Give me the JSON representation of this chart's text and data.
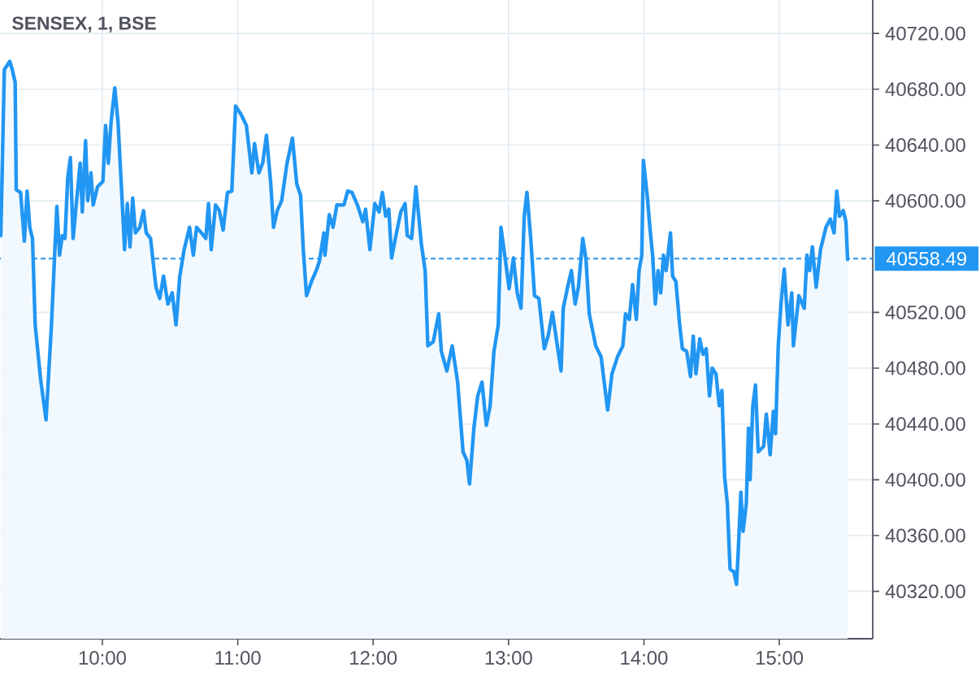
{
  "chart_data": {
    "type": "area",
    "title": "SENSEX, 1, BSE",
    "color": "#2196f3",
    "x": [
      9.25,
      9.276,
      9.316,
      9.332,
      9.356,
      9.364,
      9.396,
      9.424,
      9.444,
      9.464,
      9.484,
      9.504,
      9.544,
      9.584,
      9.624,
      9.664,
      9.684,
      9.704,
      9.724,
      9.744,
      9.764,
      9.784,
      9.804,
      9.836,
      9.852,
      9.876,
      9.892,
      9.916,
      9.932,
      9.964,
      10.004,
      10.024,
      10.044,
      10.064,
      10.092,
      10.116,
      10.144,
      10.164,
      10.184,
      10.204,
      10.224,
      10.244,
      10.276,
      10.304,
      10.324,
      10.356,
      10.396,
      10.424,
      10.452,
      10.484,
      10.516,
      10.544,
      10.572,
      10.604,
      10.644,
      10.672,
      10.696,
      10.732,
      10.764,
      10.784,
      10.804,
      10.836,
      10.864,
      10.892,
      10.924,
      10.956,
      10.984,
      11.024,
      11.064,
      11.104,
      11.124,
      11.156,
      11.184,
      11.212,
      11.244,
      11.264,
      11.292,
      11.324,
      11.364,
      11.404,
      11.436,
      11.464,
      11.484,
      11.508,
      11.544,
      11.584,
      11.604,
      11.636,
      11.644,
      11.676,
      11.704,
      11.732,
      11.784,
      11.812,
      11.844,
      11.884,
      11.924,
      11.944,
      11.976,
      12.012,
      12.044,
      12.068,
      12.092,
      12.116,
      12.136,
      12.164,
      12.204,
      12.236,
      12.252,
      12.284,
      12.316,
      12.356,
      12.384,
      12.404,
      12.444,
      12.484,
      12.504,
      12.544,
      12.584,
      12.624,
      12.664,
      12.692,
      12.712,
      12.744,
      12.772,
      12.804,
      12.836,
      12.864,
      12.892,
      12.924,
      12.944,
      12.976,
      13.004,
      13.036,
      13.064,
      13.092,
      13.116,
      13.136,
      13.164,
      13.192,
      13.224,
      13.264,
      13.292,
      13.324,
      13.388,
      13.404,
      13.436,
      13.464,
      13.492,
      13.516,
      13.548,
      13.572,
      13.596,
      13.644,
      13.684,
      13.704,
      13.732,
      13.764,
      13.804,
      13.844,
      13.864,
      13.892,
      13.916,
      13.944,
      13.964,
      13.984,
      13.996,
      14.024,
      14.044,
      14.064,
      14.084,
      14.104,
      14.124,
      14.144,
      14.164,
      14.196,
      14.212,
      14.236,
      14.264,
      14.284,
      14.316,
      14.344,
      14.364,
      14.384,
      14.412,
      14.436,
      14.46,
      14.484,
      14.504,
      14.532,
      14.556,
      14.576,
      14.596,
      14.616,
      14.636,
      14.664,
      14.684,
      14.696,
      14.716,
      14.732,
      14.756,
      14.772,
      14.784,
      14.804,
      14.824,
      14.844,
      14.884,
      14.904,
      14.932,
      14.956,
      14.972,
      14.992,
      15.012,
      15.036,
      15.064,
      15.092,
      15.104,
      15.144,
      15.184,
      15.204,
      15.224,
      15.244,
      15.272,
      15.304,
      15.344,
      15.376,
      15.404,
      15.424,
      15.444,
      15.472,
      15.492,
      15.504
    ],
    "values": [
      40575,
      40694,
      40700,
      40695,
      40685,
      40608,
      40606,
      40571,
      40607,
      40581,
      40573,
      40511,
      40472,
      40443,
      40511,
      40596,
      40561,
      40575,
      40573,
      40616,
      40631,
      40573,
      40594,
      40627,
      40592,
      40643,
      40600,
      40620,
      40597,
      40610,
      40614,
      40654,
      40627,
      40656,
      40681,
      40656,
      40604,
      40565,
      40598,
      40567,
      40602,
      40577,
      40581,
      40593,
      40577,
      40573,
      40538,
      40530,
      40546,
      40526,
      40534,
      40511,
      40546,
      40565,
      40581,
      40561,
      40581,
      40577,
      40573,
      40598,
      40565,
      40597,
      40593,
      40579,
      40606,
      40607,
      40668,
      40662,
      40654,
      40620,
      40641,
      40620,
      40627,
      40647,
      40612,
      40581,
      40593,
      40600,
      40627,
      40645,
      40612,
      40604,
      40565,
      40532,
      40542,
      40551,
      40557,
      40577,
      40561,
      40590,
      40581,
      40597,
      40597,
      40607,
      40606,
      40597,
      40585,
      40594,
      40565,
      40598,
      40592,
      40606,
      40589,
      40594,
      40559,
      40573,
      40592,
      40598,
      40575,
      40573,
      40610,
      40569,
      40550,
      40496,
      40499,
      40519,
      40492,
      40478,
      40496,
      40470,
      40420,
      40414,
      40397,
      40437,
      40460,
      40470,
      40439,
      40453,
      40492,
      40511,
      40581,
      40558,
      40537,
      40559,
      40534,
      40523,
      40589,
      40606,
      40573,
      40532,
      40530,
      40494,
      40503,
      40520,
      40478,
      40523,
      40538,
      40550,
      40526,
      40538,
      40573,
      40558,
      40519,
      40496,
      40488,
      40472,
      40450,
      40476,
      40488,
      40496,
      40519,
      40515,
      40540,
      40515,
      40550,
      40561,
      40629,
      40604,
      40581,
      40561,
      40526,
      40550,
      40534,
      40561,
      40550,
      40577,
      40546,
      40542,
      40511,
      40494,
      40492,
      40474,
      40503,
      40476,
      40501,
      40490,
      40494,
      40460,
      40480,
      40476,
      40453,
      40464,
      40402,
      40383,
      40336,
      40334,
      40325,
      40348,
      40391,
      40363,
      40383,
      40437,
      40400,
      40453,
      40468,
      40420,
      40424,
      40447,
      40418,
      40449,
      40433,
      40496,
      40526,
      40551,
      40511,
      40534,
      40496,
      40532,
      40523,
      40561,
      40550,
      40567,
      40538,
      40565,
      40581,
      40587,
      40577,
      40607,
      40589,
      40593,
      40585,
      40558
    ],
    "xlim": [
      9.244,
      15.69
    ],
    "ylim": [
      40286,
      40744
    ],
    "xticks": [
      {
        "value": 10,
        "label": "10:00"
      },
      {
        "value": 11,
        "label": "11:00"
      },
      {
        "value": 12,
        "label": "12:00"
      },
      {
        "value": 13,
        "label": "13:00"
      },
      {
        "value": 14,
        "label": "14:00"
      },
      {
        "value": 15,
        "label": "15:00"
      }
    ],
    "yticks": [
      {
        "value": 40320,
        "label": "40320.00"
      },
      {
        "value": 40360,
        "label": "40360.00"
      },
      {
        "value": 40400,
        "label": "40400.00"
      },
      {
        "value": 40440,
        "label": "40440.00"
      },
      {
        "value": 40480,
        "label": "40480.00"
      },
      {
        "value": 40520,
        "label": "40520.00"
      },
      {
        "value": 40600,
        "label": "40600.00"
      },
      {
        "value": 40640,
        "label": "40640.00"
      },
      {
        "value": 40680,
        "label": "40680.00"
      },
      {
        "value": 40720,
        "label": "40720.00"
      }
    ],
    "grid": true,
    "ref_lines": [
      {
        "axis": "y",
        "value": 40558.49,
        "label": "40558.49",
        "color": "#2196f3",
        "line_style": "dashed"
      }
    ]
  }
}
